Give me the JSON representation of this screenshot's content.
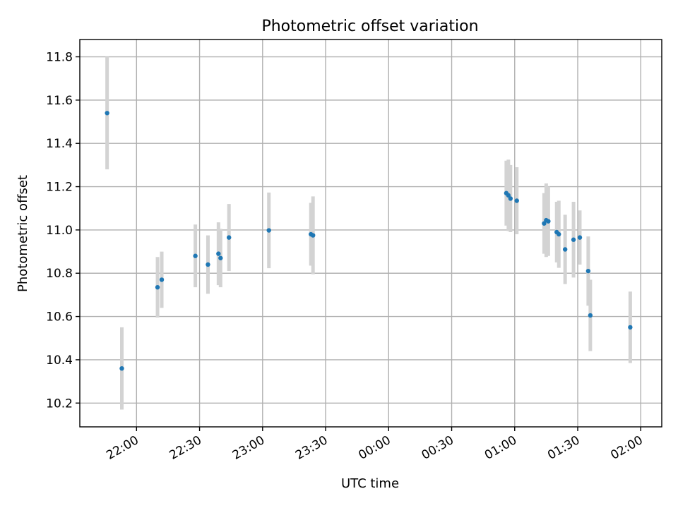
{
  "chart_data": {
    "type": "scatter",
    "title": "Photometric offset variation",
    "xlabel": "UTC time",
    "ylabel": "Photometric offset",
    "x_unit": "UTC time (hh:mm)",
    "xlim": [
      "21:33",
      "02:10"
    ],
    "ylim": [
      10.09,
      11.88
    ],
    "x_ticks": [
      "22:00",
      "22:30",
      "23:00",
      "23:30",
      "00:00",
      "00:30",
      "01:00",
      "01:30",
      "02:00"
    ],
    "y_ticks": [
      10.2,
      10.4,
      10.6,
      10.8,
      11.0,
      11.2,
      11.4,
      11.6,
      11.8
    ],
    "y_tick_labels": [
      "10.2",
      "10.4",
      "10.6",
      "10.8",
      "11.0",
      "11.2",
      "11.4",
      "11.6",
      "11.8"
    ],
    "grid": true,
    "marker_color": "#1f77b4",
    "errorbar_color": "#d3d3d3",
    "points": [
      {
        "x": "21:46",
        "y": 11.54,
        "yerr": 0.26
      },
      {
        "x": "21:53",
        "y": 10.36,
        "yerr": 0.19
      },
      {
        "x": "22:10",
        "y": 10.735,
        "yerr": 0.14
      },
      {
        "x": "22:12",
        "y": 10.77,
        "yerr": 0.13
      },
      {
        "x": "22:28",
        "y": 10.88,
        "yerr": 0.145
      },
      {
        "x": "22:34",
        "y": 10.84,
        "yerr": 0.135
      },
      {
        "x": "22:39",
        "y": 10.89,
        "yerr": 0.145
      },
      {
        "x": "22:40",
        "y": 10.87,
        "yerr": 0.135
      },
      {
        "x": "22:44",
        "y": 10.965,
        "yerr": 0.155
      },
      {
        "x": "23:03",
        "y": 10.998,
        "yerr": 0.175
      },
      {
        "x": "23:23",
        "y": 10.98,
        "yerr": 0.145
      },
      {
        "x": "23:24",
        "y": 10.975,
        "yerr": 0.18
      },
      {
        "x": "00:56",
        "y": 11.17,
        "yerr": 0.15
      },
      {
        "x": "00:57",
        "y": 11.16,
        "yerr": 0.165
      },
      {
        "x": "00:58",
        "y": 11.145,
        "yerr": 0.155
      },
      {
        "x": "01:01",
        "y": 11.135,
        "yerr": 0.155
      },
      {
        "x": "01:14",
        "y": 11.03,
        "yerr": 0.14
      },
      {
        "x": "01:15",
        "y": 11.045,
        "yerr": 0.17
      },
      {
        "x": "01:16",
        "y": 11.04,
        "yerr": 0.16
      },
      {
        "x": "01:20",
        "y": 10.99,
        "yerr": 0.14
      },
      {
        "x": "01:21",
        "y": 10.98,
        "yerr": 0.155
      },
      {
        "x": "01:24",
        "y": 10.91,
        "yerr": 0.16
      },
      {
        "x": "01:28",
        "y": 10.955,
        "yerr": 0.175
      },
      {
        "x": "01:31",
        "y": 10.965,
        "yerr": 0.125
      },
      {
        "x": "01:35",
        "y": 10.81,
        "yerr": 0.16
      },
      {
        "x": "01:36",
        "y": 10.605,
        "yerr": 0.165
      },
      {
        "x": "01:55",
        "y": 10.55,
        "yerr": 0.165
      }
    ]
  }
}
